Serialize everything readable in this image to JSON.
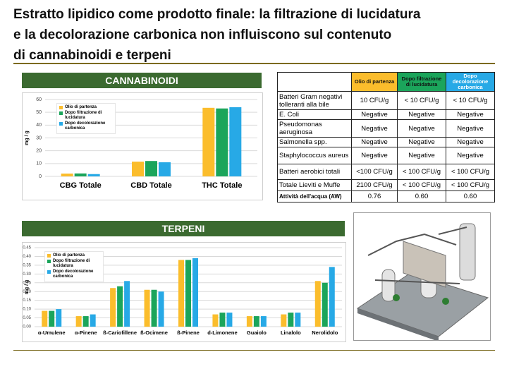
{
  "title": "Estratto lipidico come prodotto finale: la filtrazione di lucidatura\ne la decolorazione carbonica non influiscono sul contenuto\ndi cannabinoidi e terpeni",
  "chart_data": [
    {
      "type": "bar",
      "title": "CANNABINOIDI",
      "y_label": "mg / g",
      "categories": [
        "CBG Totale",
        "CBD Totale",
        "THC Totale"
      ],
      "series": [
        {
          "name": "Olio di partenza",
          "color": "#fbbd2c",
          "values": [
            2.2,
            11.5,
            53.5
          ]
        },
        {
          "name": "Dopo filtrazione di lucidatura",
          "color": "#1ba55b",
          "values": [
            2.3,
            12,
            53
          ]
        },
        {
          "name": "Dopo decolorazione carbonica",
          "color": "#27a9e6",
          "values": [
            1.8,
            11,
            54
          ]
        }
      ],
      "ylim": [
        0,
        60
      ],
      "yticks": [
        0,
        10,
        20,
        30,
        40,
        50,
        60
      ],
      "grid": true,
      "legend": "upper left"
    },
    {
      "type": "bar",
      "title": "TERPENI",
      "y_label": "mg / g",
      "categories": [
        "α-Umulene",
        "α-Pinene",
        "ß-Cariofillene",
        "ß-Ocimene",
        "ß-Pinene",
        "d-Limonene",
        "Guaiolo",
        "Linalolo",
        "Nerolidolo"
      ],
      "series": [
        {
          "name": "Olio di partenza",
          "color": "#fbbd2c",
          "values": [
            0.09,
            0.06,
            0.22,
            0.21,
            0.38,
            0.07,
            0.06,
            0.07,
            0.26
          ]
        },
        {
          "name": "Dopo filtrazione di lucidatura",
          "color": "#1ba55b",
          "values": [
            0.09,
            0.06,
            0.23,
            0.21,
            0.38,
            0.08,
            0.06,
            0.08,
            0.25
          ]
        },
        {
          "name": "Dopo decolorazione carbonica",
          "color": "#27a9e6",
          "values": [
            0.1,
            0.07,
            0.26,
            0.2,
            0.39,
            0.08,
            0.06,
            0.08,
            0.34
          ]
        }
      ],
      "ylim": [
        0,
        0.45
      ],
      "yticks": [
        {
          "value": 0,
          "label": "0.00"
        },
        0.05,
        {
          "value": 0.1,
          "label": "0.10"
        },
        0.15,
        {
          "value": 0.2,
          "label": "0.20"
        },
        0.25,
        {
          "value": 0.3,
          "label": "0.30"
        },
        0.35,
        {
          "value": 0.4,
          "label": "0.40"
        },
        0.45
      ],
      "grid": true,
      "legend": "upper left"
    }
  ],
  "table": {
    "header": [
      "Olio di partenza",
      "Dopo filtrazione di lucidatura",
      "Dopo decolorazione carbonica"
    ],
    "header_colors": [
      "#fbbd2c",
      "#1ba55b",
      "#27a9e6"
    ],
    "rows": [
      [
        "Batteri Gram negativi tolleranti alla bile",
        "10 CFU/g",
        "< 10 CFU/g",
        "< 10 CFU/g"
      ],
      [
        "E. Coli",
        "Negative",
        "Negative",
        "Negative"
      ],
      [
        "Pseudomonas aeruginosa",
        "Negative",
        "Negative",
        "Negative"
      ],
      [
        "Salmonella spp.",
        "Negative",
        "Negative",
        "Negative"
      ],
      [
        "Staphylococcus aureus",
        "Negative",
        "Negative",
        "Negative"
      ],
      [
        "Batteri aerobici totali",
        "<100 CFU/g",
        "< 100 CFU/g",
        "< 100 CFU/g"
      ],
      [
        "Totale Lieviti e Muffe",
        "2100 CFU/g",
        "< 100 CFU/g",
        "< 100 CFU/g"
      ],
      [
        "Attività dell'acqua (AW)",
        "0.76",
        "0.60",
        "0.60"
      ]
    ]
  }
}
